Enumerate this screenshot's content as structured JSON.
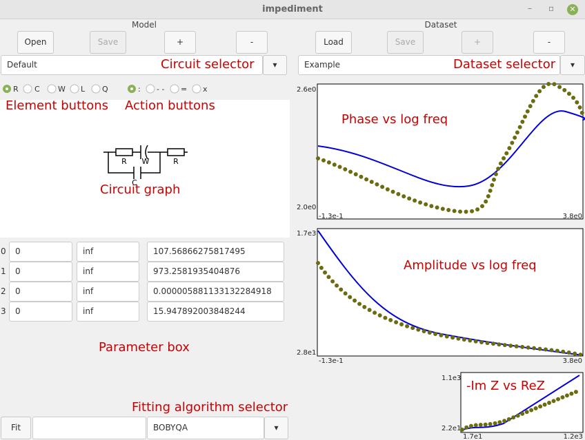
{
  "window": {
    "title": "impediment"
  },
  "model": {
    "label": "Model",
    "buttons": [
      "Open",
      "Save",
      "+",
      "-"
    ],
    "circuit_selector": "Default"
  },
  "dataset": {
    "label": "Dataset",
    "buttons": [
      "Load",
      "Save",
      "+",
      "-"
    ],
    "dataset_selector": "Example"
  },
  "element_buttons": [
    "R",
    "C",
    "W",
    "L",
    "Q"
  ],
  "action_buttons": [
    ":",
    "- -",
    "=",
    "x"
  ],
  "circuit": {
    "labels": [
      "R",
      "W",
      "R",
      "C"
    ]
  },
  "parameters": {
    "rows": [
      [
        "0",
        "0",
        "inf",
        "107.56866275817495"
      ],
      [
        "1",
        "0",
        "inf",
        "973.2581935404876"
      ],
      [
        "2",
        "0",
        "inf",
        "0.000005881133132284918"
      ],
      [
        "3",
        "0",
        "inf",
        "15.947892003848244"
      ]
    ]
  },
  "fit": {
    "button": "Fit",
    "algorithm": "BOBYQA"
  },
  "annotations": {
    "circuit_selector": "Circuit selector",
    "dataset_selector": "Dataset selector",
    "element_buttons": "Element buttons",
    "action_buttons": "Action buttons",
    "circuit_graph": "Circuit graph",
    "parameter_box": "Parameter box",
    "fitting_selector": "Fitting algorithm selector"
  },
  "plots": [
    {
      "title": "Phase vs log freq",
      "ylabels": [
        "2.6e0",
        "2.0e0"
      ],
      "xlabels": [
        "-1.3e-1",
        "3.8e0"
      ]
    },
    {
      "title": "Amplitude vs log freq",
      "ylabels": [
        "1.7e3",
        "2.8e1"
      ],
      "xlabels": [
        "-1.3e-1",
        "3.8e0"
      ]
    },
    {
      "title": "-Im Z vs ReZ",
      "ylabels": [
        "1.1e3",
        "2.2e1"
      ],
      "xlabels": [
        "1.7e1",
        "1.2e3"
      ]
    }
  ]
}
